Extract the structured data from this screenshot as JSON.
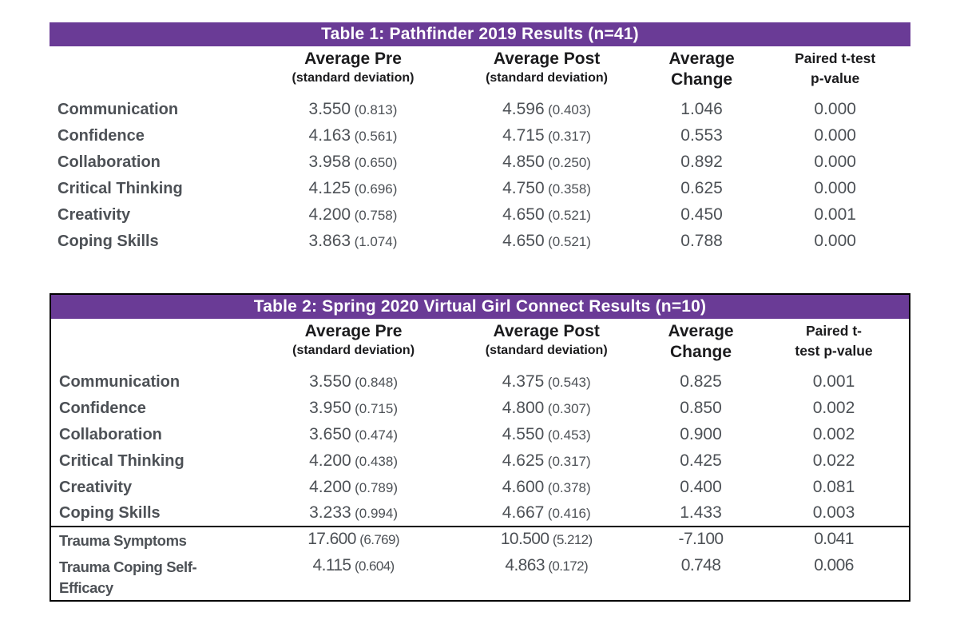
{
  "colors": {
    "accent_purple": "#6a3b96",
    "title_text": "#ffffff",
    "header_text": "#1b1b1d",
    "body_text": "#4d5156",
    "border": "#000000"
  },
  "tables": [
    {
      "title": "Table 1: Pathfinder 2019 Results (n=41)",
      "headers": {
        "pre": [
          "Average Pre",
          "(standard deviation)"
        ],
        "post": [
          "Average Post",
          "(standard deviation)"
        ],
        "change": [
          "Average",
          "Change"
        ],
        "p": [
          "Paired t-test",
          "p-value"
        ]
      },
      "rows": [
        {
          "label": "Communication",
          "pre": "3.550",
          "pre_sd": "(0.813)",
          "post": "4.596",
          "post_sd": "(0.403)",
          "change": "1.046",
          "p": "0.000"
        },
        {
          "label": "Confidence",
          "pre": "4.163",
          "pre_sd": "(0.561)",
          "post": "4.715",
          "post_sd": "(0.317)",
          "change": "0.553",
          "p": "0.000"
        },
        {
          "label": "Collaboration",
          "pre": "3.958",
          "pre_sd": "(0.650)",
          "post": "4.850",
          "post_sd": "(0.250)",
          "change": "0.892",
          "p": "0.000"
        },
        {
          "label": "Critical Thinking",
          "pre": "4.125",
          "pre_sd": "(0.696)",
          "post": "4.750",
          "post_sd": "(0.358)",
          "change": "0.625",
          "p": "0.000"
        },
        {
          "label": "Creativity",
          "pre": "4.200",
          "pre_sd": "(0.758)",
          "post": "4.650",
          "post_sd": "(0.521)",
          "change": "0.450",
          "p": "0.001"
        },
        {
          "label": "Coping Skills",
          "pre": "3.863",
          "pre_sd": "(1.074)",
          "post": "4.650",
          "post_sd": "(0.521)",
          "change": "0.788",
          "p": "0.000"
        }
      ]
    },
    {
      "title": "Table 2: Spring 2020 Virtual Girl Connect Results (n=10)",
      "headers": {
        "pre": [
          "Average Pre",
          "(standard deviation)"
        ],
        "post": [
          "Average Post",
          "(standard deviation)"
        ],
        "change": [
          "Average",
          "Change"
        ],
        "p": [
          "Paired t-",
          "test p-value"
        ]
      },
      "rows": [
        {
          "label": "Communication",
          "pre": "3.550",
          "pre_sd": "(0.848)",
          "post": "4.375",
          "post_sd": "(0.543)",
          "change": "0.825",
          "p": "0.001"
        },
        {
          "label": "Confidence",
          "pre": "3.950",
          "pre_sd": "(0.715)",
          "post": "4.800",
          "post_sd": "(0.307)",
          "change": "0.850",
          "p": "0.002"
        },
        {
          "label": "Collaboration",
          "pre": "3.650",
          "pre_sd": "(0.474)",
          "post": "4.550",
          "post_sd": "(0.453)",
          "change": "0.900",
          "p": "0.002"
        },
        {
          "label": "Critical Thinking",
          "pre": "4.200",
          "pre_sd": "(0.438)",
          "post": "4.625",
          "post_sd": "(0.317)",
          "change": "0.425",
          "p": "0.022"
        },
        {
          "label": "Creativity",
          "pre": "4.200",
          "pre_sd": "(0.789)",
          "post": "4.600",
          "post_sd": "(0.378)",
          "change": "0.400",
          "p": "0.081"
        },
        {
          "label": "Coping Skills",
          "pre": "3.233",
          "pre_sd": "(0.994)",
          "post": "4.667",
          "post_sd": "(0.416)",
          "change": "1.433",
          "p": "0.003"
        }
      ],
      "trauma_rows": [
        {
          "label": "Trauma Symptoms",
          "pre": "17.600",
          "pre_sd": "(6.769)",
          "post": "10.500",
          "post_sd": "(5.212)",
          "change": "-7.100",
          "p": "0.041"
        },
        {
          "label": "Trauma Coping Self-Efficacy",
          "pre": "4.115",
          "pre_sd": "(0.604)",
          "post": "4.863",
          "post_sd": "(0.172)",
          "change": "0.748",
          "p": "0.006"
        }
      ]
    }
  ]
}
